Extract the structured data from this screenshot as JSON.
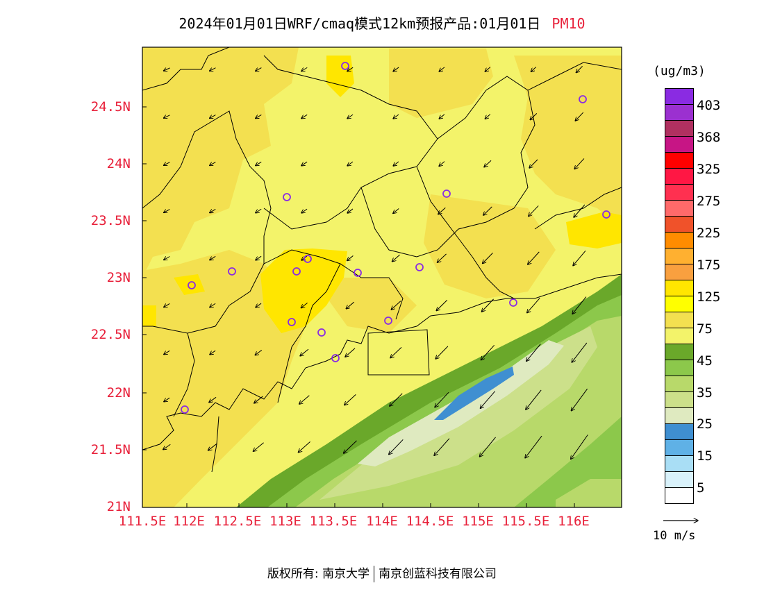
{
  "title": {
    "text": "2024年01月01日WRF/cmaq模式12km预报产品:01月01日",
    "pollutant": "PM10"
  },
  "axes": {
    "lat_labels": [
      "24.5N",
      "24N",
      "23.5N",
      "23N",
      "22.5N",
      "22N",
      "21.5N",
      "21N"
    ],
    "lon_labels": [
      "111.5E",
      "112E",
      "112.5E",
      "113E",
      "113.5E",
      "114E",
      "114.5E",
      "115E",
      "115.5E",
      "116E"
    ]
  },
  "colorbar": {
    "unit": "(ug/m3)",
    "colors": [
      "#8a2be2",
      "#9b30d0",
      "#b03060",
      "#c71585",
      "#ff0000",
      "#ff1744",
      "#ff3050",
      "#ff6a6a",
      "#f0522a",
      "#ff8c00",
      "#ffb030",
      "#f9a03f",
      "#ffe600",
      "#ffff00",
      "#f3e050",
      "#f3f36a",
      "#6aa82a",
      "#8cc84b",
      "#b8d96a",
      "#cce08a",
      "#dfeac0",
      "#3f8fd1",
      "#5fb1e6",
      "#a9def5",
      "#d9f2fb",
      "#ffffff"
    ],
    "labels": [
      "403",
      "368",
      "325",
      "275",
      "225",
      "175",
      "125",
      "75",
      "45",
      "35",
      "25",
      "15",
      "5"
    ]
  },
  "wind_key": {
    "label": "10 m/s"
  },
  "copyright": {
    "left": "版权所有: 南京大学",
    "right": "南京创蓝科技有限公司"
  },
  "field_colors": {
    "yellow_light": "#f3f36a",
    "yellow_mid": "#f3e050",
    "yellow_bright": "#ffe600",
    "green_dark": "#6aa82a",
    "green_mid": "#8cc84b",
    "green_light": "#b8d96a",
    "green_pale": "#cce08a",
    "cream": "#dfeac0",
    "blue": "#3f8fd1",
    "station": "#8a2be2"
  }
}
